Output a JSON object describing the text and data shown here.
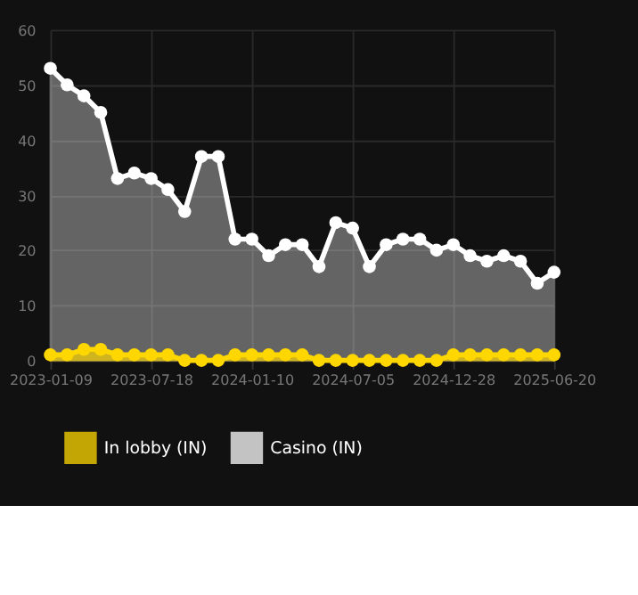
{
  "chart_data": {
    "type": "area",
    "categories": [
      "2023-01-09",
      null,
      null,
      null,
      null,
      null,
      "2023-07-18",
      null,
      null,
      null,
      null,
      null,
      "2024-01-10",
      null,
      null,
      null,
      null,
      null,
      "2024-07-05",
      null,
      null,
      null,
      null,
      null,
      "2024-12-28",
      null,
      null,
      null,
      null,
      null,
      "2025-06-20"
    ],
    "series": [
      {
        "name": "In lobby (IN)",
        "color": "#ffd700",
        "values": [
          1,
          1,
          2,
          2,
          1,
          1,
          1,
          1,
          0,
          0,
          0,
          1,
          1,
          1,
          1,
          1,
          0,
          0,
          0,
          0,
          0,
          0,
          0,
          0,
          1,
          1,
          1,
          1,
          1,
          1,
          1
        ]
      },
      {
        "name": "Casino (IN)",
        "color": "#ffffff",
        "values": [
          53,
          50,
          48,
          45,
          33,
          34,
          33,
          31,
          27,
          37,
          37,
          22,
          22,
          19,
          21,
          21,
          17,
          25,
          24,
          17,
          21,
          22,
          22,
          20,
          21,
          19,
          18,
          19,
          18,
          14,
          16
        ]
      }
    ],
    "ylim": [
      0,
      60
    ],
    "yticks": [
      0,
      10,
      20,
      30,
      40,
      50,
      60
    ],
    "grid": true,
    "legend": "bottom",
    "marker": "circle"
  }
}
